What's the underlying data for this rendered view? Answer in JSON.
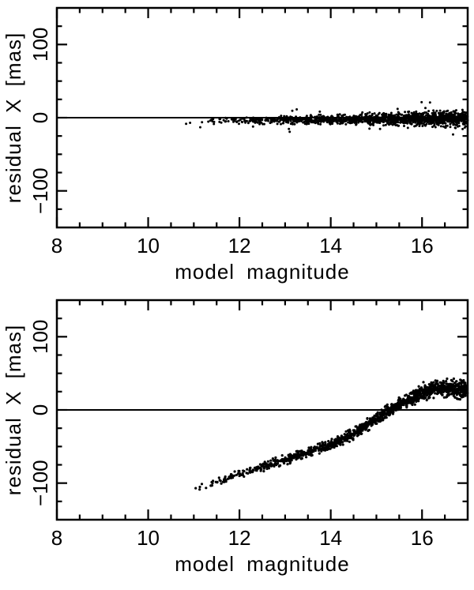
{
  "figure": {
    "background": "#ffffff",
    "axis_color": "#000000"
  },
  "chart_data": [
    {
      "type": "scatter",
      "title": "",
      "xlabel": "model magnitude",
      "ylabel": "residual X [mas]",
      "xlim": [
        8,
        17
      ],
      "ylim": [
        -150,
        150
      ],
      "xticks": [
        8,
        10,
        12,
        14,
        16
      ],
      "xtick_labels": [
        "8",
        "10",
        "12",
        "14",
        "16"
      ],
      "yticks": [
        -100,
        0,
        100
      ],
      "ytick_labels": [
        "−100",
        "0",
        "100"
      ],
      "x_minor_step": 0.5,
      "y_minor_step": 25,
      "zero_line": 0,
      "legend": "none",
      "grid": false,
      "marker_color": "#000000",
      "marker_radius": 1.5,
      "points": {
        "n": 1500,
        "x_start": 10.78,
        "x_end": 17.0,
        "density_gamma": 2.2,
        "outlier_fraction": 0.025,
        "outlier_scale": 2.8,
        "trend": [
          {
            "x": 10.8,
            "mean": -8.0,
            "spread": 1.2
          },
          {
            "x": 11.2,
            "mean": -6.0,
            "spread": 1.5
          },
          {
            "x": 11.6,
            "mean": -5.0,
            "spread": 1.8
          },
          {
            "x": 12.0,
            "mean": -4.0,
            "spread": 2.0
          },
          {
            "x": 13.0,
            "mean": -3.0,
            "spread": 2.4
          },
          {
            "x": 14.0,
            "mean": -2.5,
            "spread": 2.8
          },
          {
            "x": 15.0,
            "mean": -2.0,
            "spread": 3.4
          },
          {
            "x": 16.0,
            "mean": -1.5,
            "spread": 4.4
          },
          {
            "x": 17.0,
            "mean": -1.0,
            "spread": 5.8
          }
        ]
      }
    },
    {
      "type": "scatter",
      "title": "",
      "xlabel": "model magnitude",
      "ylabel": "residual X [mas]",
      "xlim": [
        8,
        17
      ],
      "ylim": [
        -150,
        150
      ],
      "xticks": [
        8,
        10,
        12,
        14,
        16
      ],
      "xtick_labels": [
        "8",
        "10",
        "12",
        "14",
        "16"
      ],
      "yticks": [
        -100,
        0,
        100
      ],
      "ytick_labels": [
        "−100",
        "0",
        "100"
      ],
      "x_minor_step": 0.5,
      "y_minor_step": 25,
      "zero_line": 0,
      "legend": "none",
      "grid": false,
      "marker_color": "#000000",
      "marker_radius": 1.6,
      "points": {
        "n": 1300,
        "x_start": 10.8,
        "x_end": 17.0,
        "density_gamma": 2.0,
        "outlier_fraction": 0.008,
        "outlier_scale": 1.8,
        "trend": [
          {
            "x": 10.8,
            "mean": -114.0,
            "spread": 1.8
          },
          {
            "x": 11.1,
            "mean": -106.0,
            "spread": 2.0
          },
          {
            "x": 11.5,
            "mean": -98.0,
            "spread": 2.2
          },
          {
            "x": 12.0,
            "mean": -88.0,
            "spread": 2.5
          },
          {
            "x": 12.5,
            "mean": -78.0,
            "spread": 2.8
          },
          {
            "x": 13.0,
            "mean": -68.0,
            "spread": 3.0
          },
          {
            "x": 13.5,
            "mean": -58.0,
            "spread": 3.0
          },
          {
            "x": 14.0,
            "mean": -47.0,
            "spread": 3.2
          },
          {
            "x": 14.5,
            "mean": -33.0,
            "spread": 3.5
          },
          {
            "x": 15.0,
            "mean": -12.0,
            "spread": 3.8
          },
          {
            "x": 15.3,
            "mean": 0.0,
            "spread": 4.0
          },
          {
            "x": 15.7,
            "mean": 14.0,
            "spread": 4.4
          },
          {
            "x": 16.0,
            "mean": 23.0,
            "spread": 4.8
          },
          {
            "x": 16.3,
            "mean": 29.0,
            "spread": 5.0
          },
          {
            "x": 16.6,
            "mean": 30.0,
            "spread": 5.4
          },
          {
            "x": 17.0,
            "mean": 27.0,
            "spread": 6.0
          }
        ]
      }
    }
  ]
}
